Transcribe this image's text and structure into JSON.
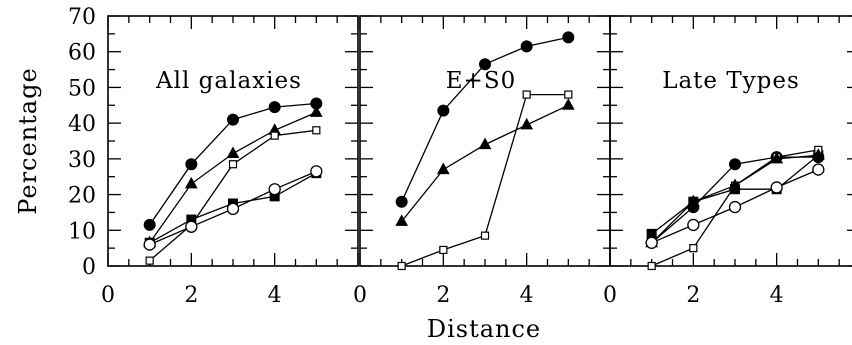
{
  "chart_data": {
    "type": "line",
    "layout": "three side-by-side panels sharing the y axis",
    "xlabel": "Distance",
    "ylabel": "Percentage",
    "xlim": [
      0,
      6
    ],
    "ylim": [
      0,
      70
    ],
    "x_ticks": [
      0,
      2,
      4
    ],
    "y_ticks": [
      0,
      10,
      20,
      30,
      40,
      50,
      60,
      70
    ],
    "grid": false,
    "legend": "none",
    "colors": {
      "line": "#000000",
      "background": "#ffffff"
    },
    "marker_styles": [
      "filled-circle",
      "filled-triangle",
      "open-square",
      "filled-square",
      "open-circle"
    ],
    "panels": [
      {
        "title": "All galaxies",
        "series": [
          {
            "marker": "filled-circle",
            "x": [
              1,
              2,
              3,
              4,
              5
            ],
            "y": [
              11.5,
              28.5,
              41,
              44.5,
              45.5
            ]
          },
          {
            "marker": "filled-triangle",
            "x": [
              1,
              2,
              3,
              4,
              5
            ],
            "y": [
              6.5,
              23,
              31.5,
              38,
              43
            ]
          },
          {
            "marker": "open-square",
            "x": [
              1,
              2,
              3,
              4,
              5
            ],
            "y": [
              1.5,
              11.5,
              28.5,
              36.5,
              38
            ]
          },
          {
            "marker": "filled-square",
            "x": [
              1,
              2,
              3,
              4,
              5
            ],
            "y": [
              6.5,
              13,
              17.5,
              19.5,
              26
            ]
          },
          {
            "marker": "open-circle",
            "x": [
              1,
              2,
              3,
              4,
              5
            ],
            "y": [
              6,
              11,
              16,
              21.5,
              26.5
            ]
          }
        ]
      },
      {
        "title": "E+S0",
        "series": [
          {
            "marker": "filled-circle",
            "x": [
              1,
              2,
              3,
              4,
              5
            ],
            "y": [
              18,
              43.5,
              56.5,
              61.5,
              64
            ]
          },
          {
            "marker": "filled-triangle",
            "x": [
              1,
              2,
              3,
              4,
              5
            ],
            "y": [
              12.5,
              27,
              34,
              39.5,
              45
            ]
          },
          {
            "marker": "open-square",
            "x": [
              1,
              2,
              3,
              4,
              5
            ],
            "y": [
              0,
              4.5,
              8.5,
              48,
              48
            ]
          }
        ]
      },
      {
        "title": "Late Types",
        "series": [
          {
            "marker": "filled-circle",
            "x": [
              1,
              2,
              3,
              4,
              5
            ],
            "y": [
              6.5,
              16.5,
              28.5,
              30.5,
              30.5
            ]
          },
          {
            "marker": "filled-square",
            "x": [
              1,
              2,
              3,
              4,
              5
            ],
            "y": [
              9,
              18,
              21.5,
              21.5,
              31
            ]
          },
          {
            "marker": "open-square",
            "x": [
              1,
              2,
              3,
              4,
              5
            ],
            "y": [
              0,
              5,
              22.5,
              30.5,
              32.5
            ]
          },
          {
            "marker": "filled-triangle",
            "x": [
              1,
              2,
              3,
              4,
              5
            ],
            "y": [
              6.5,
              18,
              22.5,
              30,
              31
            ]
          },
          {
            "marker": "open-circle",
            "x": [
              1,
              2,
              3,
              4,
              5
            ],
            "y": [
              6.5,
              11.5,
              16.5,
              22,
              27
            ]
          }
        ]
      }
    ]
  }
}
